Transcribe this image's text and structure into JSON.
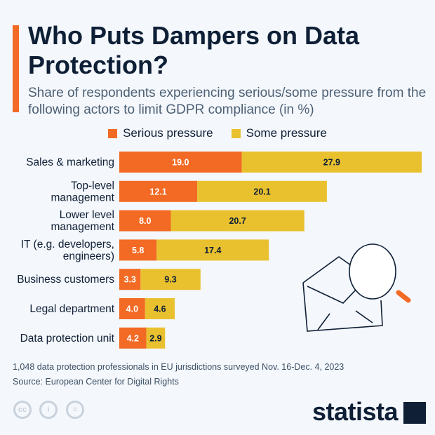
{
  "header": {
    "title": "Who Puts Dampers on Data Protection?",
    "subtitle": "Share of respondents experiencing serious/some pressure from the following actors to limit GDPR compliance (in %)"
  },
  "chart_data": {
    "type": "bar",
    "orientation": "horizontal",
    "stacked": true,
    "categories": [
      "Sales & marketing",
      "Top-level management",
      "Lower level management",
      "IT (e.g. developers, engineers)",
      "Business customers",
      "Legal department",
      "Data protection unit"
    ],
    "category_lines": [
      [
        "Sales & marketing"
      ],
      [
        "Top-level",
        "management"
      ],
      [
        "Lower level",
        "management"
      ],
      [
        "IT (e.g. developers,",
        "engineers)"
      ],
      [
        "Business customers"
      ],
      [
        "Legal department"
      ],
      [
        "Data protection unit"
      ]
    ],
    "series": [
      {
        "name": "Serious pressure",
        "color": "#f26a24",
        "values": [
          19.0,
          12.1,
          8.0,
          5.8,
          3.3,
          4.0,
          4.2
        ]
      },
      {
        "name": "Some pressure",
        "color": "#e9c12f",
        "values": [
          27.9,
          20.1,
          20.7,
          17.4,
          9.3,
          4.6,
          2.9
        ]
      }
    ],
    "legend": "top-center",
    "grid": false,
    "data_labels": true
  },
  "footer": {
    "note": "1,048 data protection professionals in EU jurisdictions surveyed Nov. 16-Dec. 4, 2023",
    "source": "Source: European Center for Digital Rights",
    "brand": "statista",
    "license_icons": [
      "cc-icon",
      "attribution-icon",
      "no-derivatives-icon"
    ]
  }
}
